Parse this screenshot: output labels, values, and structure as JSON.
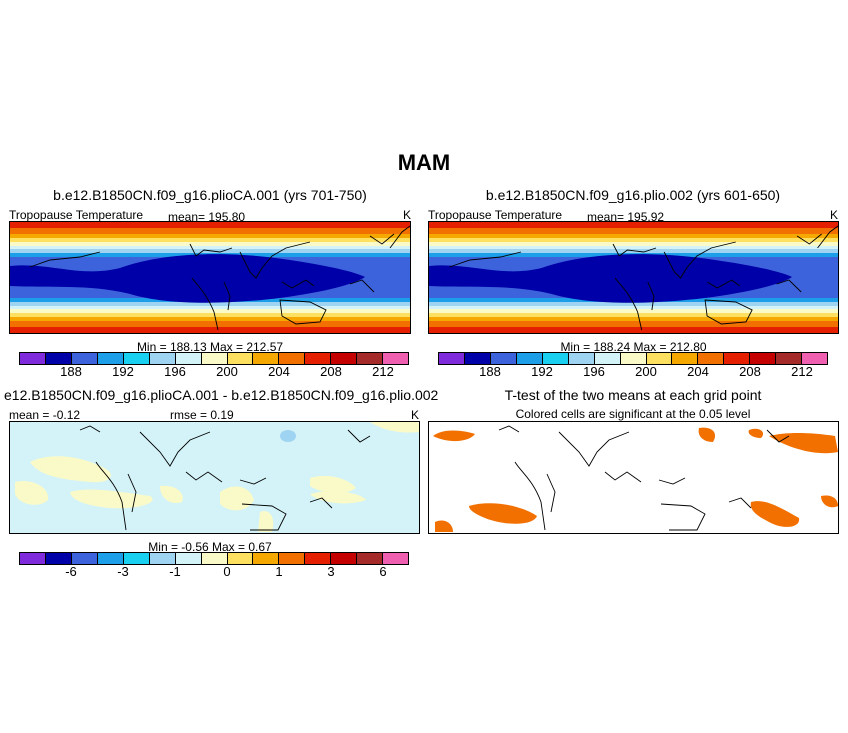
{
  "main_title": "MAM",
  "colors": [
    "#7f2bdb",
    "#0000a8",
    "#3d63dc",
    "#1c9fe8",
    "#1ad0f0",
    "#9fd3f2",
    "#d3f3f8",
    "#fafac8",
    "#fde060",
    "#f5a800",
    "#f27000",
    "#e52000",
    "#c40000",
    "#a52a2a",
    "#f060b0"
  ],
  "chart_data": [
    {
      "type": "heatmap",
      "title": "b.e12.B1850CN.f09_g16.plioCA.001 (yrs 701-750)",
      "variable": "Tropopause Temperature",
      "mean_label": "mean= 195.80",
      "units": "K",
      "minmax_label": "Min = 188.13 Max = 212.57",
      "colorbar_ticks": [
        "188",
        "192",
        "196",
        "200",
        "204",
        "208",
        "212"
      ],
      "value_range": [
        188.13,
        212.57
      ]
    },
    {
      "type": "heatmap",
      "title": "b.e12.B1850CN.f09_g16.plio.002 (yrs 601-650)",
      "variable": "Tropopause Temperature",
      "mean_label": "mean= 195.92",
      "units": "K",
      "minmax_label": "Min = 188.24 Max = 212.80",
      "colorbar_ticks": [
        "188",
        "192",
        "196",
        "200",
        "204",
        "208",
        "212"
      ],
      "value_range": [
        188.24,
        212.8
      ]
    },
    {
      "type": "heatmap",
      "title": "e12.B1850CN.f09_g16.plioCA.001 - b.e12.B1850CN.f09_g16.plio.002",
      "mean_label": "mean = -0.12",
      "rmse_label": "rmse = 0.19",
      "units": "K",
      "minmax_label": "Min = -0.56 Max = 0.67",
      "colorbar_ticks": [
        "-6",
        "-3",
        "-1",
        "0",
        "1",
        "3",
        "6"
      ],
      "value_range": [
        -0.56,
        0.67
      ]
    },
    {
      "type": "heatmap",
      "title": "T-test of the two means at each grid point",
      "subtitle": "Colored cells are significant at the 0.05 level"
    }
  ]
}
